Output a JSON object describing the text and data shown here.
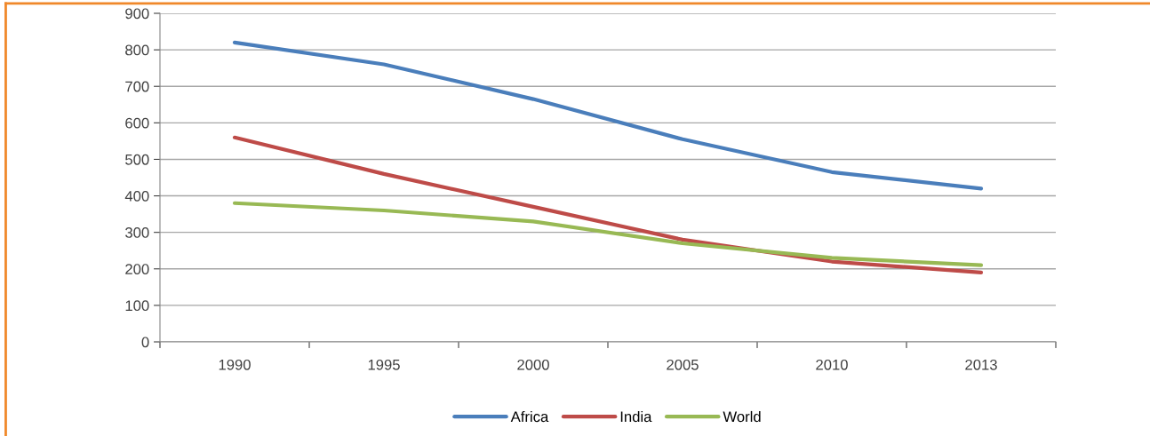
{
  "chart_data": {
    "type": "line",
    "categories": [
      "1990",
      "1995",
      "2000",
      "2005",
      "2010",
      "2013"
    ],
    "series": [
      {
        "name": "Africa",
        "color": "#4a7ebb",
        "values": [
          820,
          760,
          665,
          555,
          465,
          420
        ]
      },
      {
        "name": "India",
        "color": "#be4b48",
        "values": [
          560,
          460,
          370,
          280,
          220,
          190
        ]
      },
      {
        "name": "World",
        "color": "#98b954",
        "values": [
          380,
          360,
          330,
          270,
          230,
          210
        ]
      }
    ],
    "ylim": [
      0,
      900
    ],
    "yticks": [
      0,
      100,
      200,
      300,
      400,
      500,
      600,
      700,
      800,
      900
    ],
    "grid": "y",
    "legend": "bottom"
  }
}
